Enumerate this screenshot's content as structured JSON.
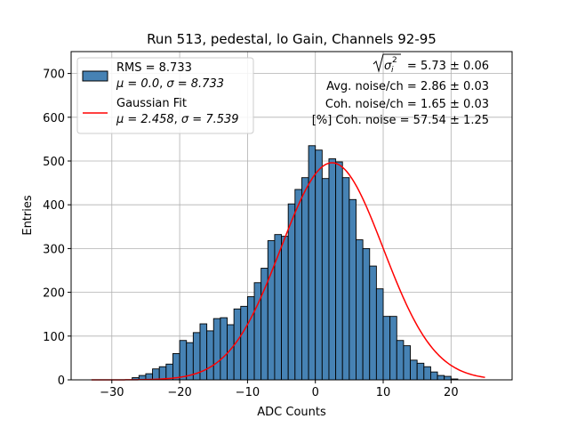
{
  "chart_data": {
    "type": "bar",
    "title": "Run 513, pedestal, lo Gain, Channels 92-95",
    "xlabel": "ADC Counts",
    "ylabel": "Entries",
    "xlim": [
      -36,
      29
    ],
    "ylim": [
      0,
      750
    ],
    "grid": true,
    "xticks": [
      -30,
      -20,
      -10,
      0,
      10,
      20
    ],
    "yticks": [
      0,
      100,
      200,
      300,
      400,
      500,
      600,
      700
    ],
    "histogram": {
      "name": "RMS = 8.733",
      "color": "#4682b4",
      "edge_color": "#000000",
      "bin_start": -33,
      "bin_width": 1,
      "values": [
        0,
        0,
        0,
        0,
        0,
        0,
        5,
        10,
        14,
        25,
        30,
        36,
        60,
        90,
        85,
        108,
        128,
        112,
        140,
        142,
        126,
        162,
        168,
        190,
        222,
        255,
        318,
        332,
        328,
        402,
        435,
        462,
        535,
        525,
        460,
        505,
        498,
        462,
        412,
        320,
        300,
        260,
        208,
        145,
        145,
        90,
        78,
        45,
        38,
        30,
        18,
        10,
        8,
        2
      ]
    },
    "fit": {
      "name": "Gaussian Fit",
      "color": "#ff0000",
      "mu": 2.458,
      "sigma": 7.539,
      "amplitude": 496,
      "x_range": [
        -33,
        25
      ]
    },
    "legend": {
      "position": "top-left",
      "entries": [
        {
          "line1": "RMS = 8.733",
          "mu_label": "μ = 0.0",
          "sigma_label": "σ = 8.733"
        },
        {
          "line1": "Gaussian Fit",
          "mu_label": "μ = 2.458",
          "sigma_label": "σ = 7.539"
        }
      ]
    },
    "annotations": {
      "sigma_total_value": "= 5.73 ± 0.06",
      "avg_noise": "Avg. noise/ch = 2.86 ± 0.03",
      "coh_noise": "Coh. noise/ch = 1.65 ± 0.03",
      "coh_noise_pct": "[%] Coh. noise = 57.54 ± 1.25"
    }
  }
}
